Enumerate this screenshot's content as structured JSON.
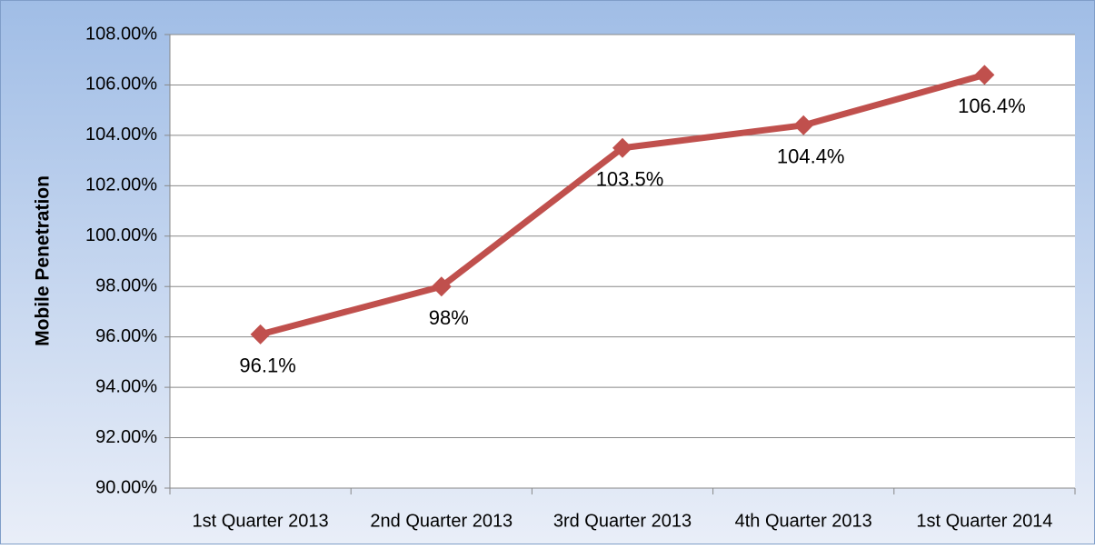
{
  "chart_data": {
    "type": "line",
    "ylabel": "Mobile Penetration",
    "categories": [
      "1st Quarter 2013",
      "2nd Quarter 2013",
      "3rd Quarter 2013",
      "4th Quarter 2013",
      "1st Quarter 2014"
    ],
    "series": [
      {
        "color": "#c0504d",
        "values": [
          96.1,
          98,
          103.5,
          104.4,
          106.4
        ],
        "value_labels": [
          "96.1%",
          "98%",
          "103.5%",
          "104.4%",
          "106.4%"
        ]
      }
    ],
    "ylim": [
      90,
      108
    ],
    "yticks": [
      {
        "value": 90,
        "label": "90.00%"
      },
      {
        "value": 92,
        "label": "92.00%"
      },
      {
        "value": 94,
        "label": "94.00%"
      },
      {
        "value": 96,
        "label": "96.00%"
      },
      {
        "value": 98,
        "label": "98.00%"
      },
      {
        "value": 100,
        "label": "100.00%"
      },
      {
        "value": 102,
        "label": "102.00%"
      },
      {
        "value": 104,
        "label": "104.00%"
      },
      {
        "value": 106,
        "label": "106.00%"
      },
      {
        "value": 108,
        "label": "108.00%"
      }
    ],
    "grid": true
  }
}
